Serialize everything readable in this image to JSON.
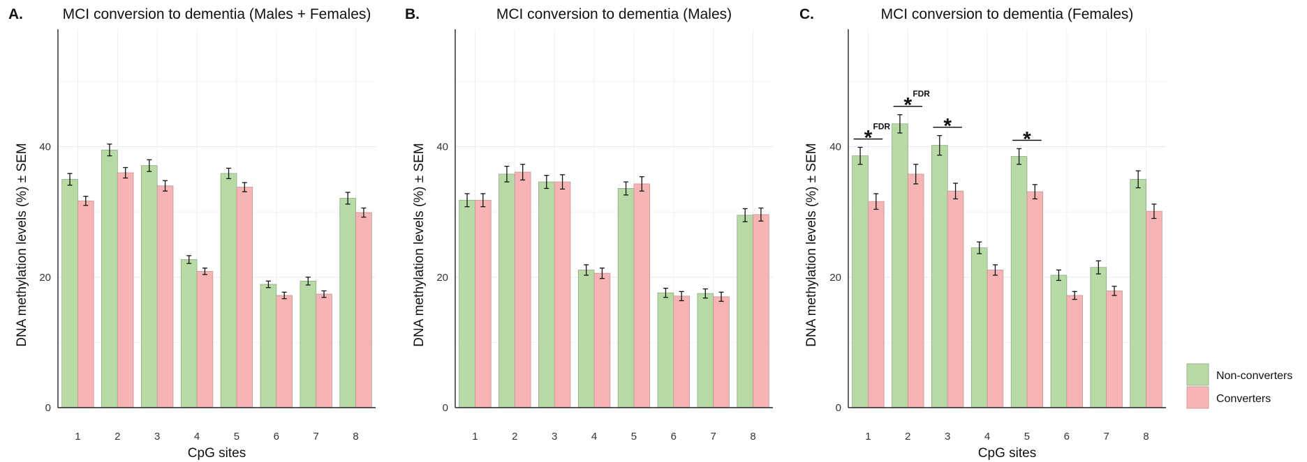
{
  "legend": {
    "items": [
      {
        "label": "Non-converters",
        "color": "#b8dba5"
      },
      {
        "label": "Converters",
        "color": "#f7b4b4"
      }
    ]
  },
  "chart_data": [
    {
      "type": "bar",
      "panel_label": "A.",
      "title": "MCI conversion to dementia (Males + Females)",
      "xlabel": "CpG sites",
      "ylabel": "DNA methylation levels (%) ± SEM",
      "categories": [
        "1",
        "2",
        "3",
        "4",
        "5",
        "6",
        "7",
        "8"
      ],
      "ylim": [
        0,
        58
      ],
      "yticks": [
        0,
        20,
        40
      ],
      "grid": true,
      "series": [
        {
          "name": "Non-converters",
          "color": "#b8dba5",
          "values": [
            35.0,
            39.5,
            37.1,
            22.7,
            35.9,
            18.9,
            19.4,
            32.1
          ],
          "sem": [
            0.9,
            0.9,
            0.9,
            0.6,
            0.8,
            0.5,
            0.6,
            0.9
          ]
        },
        {
          "name": "Converters",
          "color": "#f7b4b4",
          "values": [
            31.7,
            36.0,
            34.0,
            20.9,
            33.8,
            17.2,
            17.4,
            29.9
          ],
          "sem": [
            0.7,
            0.8,
            0.8,
            0.5,
            0.7,
            0.5,
            0.5,
            0.7
          ]
        }
      ],
      "annotations": []
    },
    {
      "type": "bar",
      "panel_label": "B.",
      "title": "MCI conversion to dementia (Males)",
      "xlabel": "",
      "ylabel": "DNA methylation levels (%) ± SEM",
      "categories": [
        "1",
        "2",
        "3",
        "4",
        "5",
        "6",
        "7",
        "8"
      ],
      "ylim": [
        0,
        58
      ],
      "yticks": [
        0,
        20,
        40
      ],
      "grid": true,
      "series": [
        {
          "name": "Non-converters",
          "color": "#b8dba5",
          "values": [
            31.8,
            35.8,
            34.6,
            21.1,
            33.6,
            17.6,
            17.5,
            29.5
          ],
          "sem": [
            1.0,
            1.2,
            1.0,
            0.8,
            1.0,
            0.7,
            0.7,
            1.0
          ]
        },
        {
          "name": "Converters",
          "color": "#f7b4b4",
          "values": [
            31.8,
            36.1,
            34.6,
            20.6,
            34.3,
            17.1,
            17.0,
            29.6
          ],
          "sem": [
            1.0,
            1.2,
            1.1,
            0.8,
            1.1,
            0.7,
            0.7,
            1.0
          ]
        }
      ],
      "annotations": []
    },
    {
      "type": "bar",
      "panel_label": "C.",
      "title": "MCI conversion to dementia (Females)",
      "xlabel": "CpG sites",
      "ylabel": "DNA methylation levels (%) ± SEM",
      "categories": [
        "1",
        "2",
        "3",
        "4",
        "5",
        "6",
        "7",
        "8"
      ],
      "ylim": [
        0,
        58
      ],
      "yticks": [
        0,
        20,
        40
      ],
      "grid": true,
      "series": [
        {
          "name": "Non-converters",
          "color": "#b8dba5",
          "values": [
            38.6,
            43.5,
            40.2,
            24.5,
            38.5,
            20.3,
            21.5,
            35.0
          ],
          "sem": [
            1.3,
            1.4,
            1.5,
            0.9,
            1.2,
            0.8,
            1.0,
            1.3
          ]
        },
        {
          "name": "Converters",
          "color": "#f7b4b4",
          "values": [
            31.6,
            35.8,
            33.2,
            21.1,
            33.1,
            17.2,
            17.9,
            30.1
          ],
          "sem": [
            1.2,
            1.5,
            1.2,
            0.8,
            1.1,
            0.6,
            0.7,
            1.1
          ]
        }
      ],
      "annotations": [
        {
          "site": "1",
          "symbol": "*",
          "superscript": "FDR"
        },
        {
          "site": "2",
          "symbol": "*",
          "superscript": "FDR"
        },
        {
          "site": "3",
          "symbol": "*",
          "superscript": ""
        },
        {
          "site": "5",
          "symbol": "*",
          "superscript": ""
        }
      ]
    }
  ]
}
